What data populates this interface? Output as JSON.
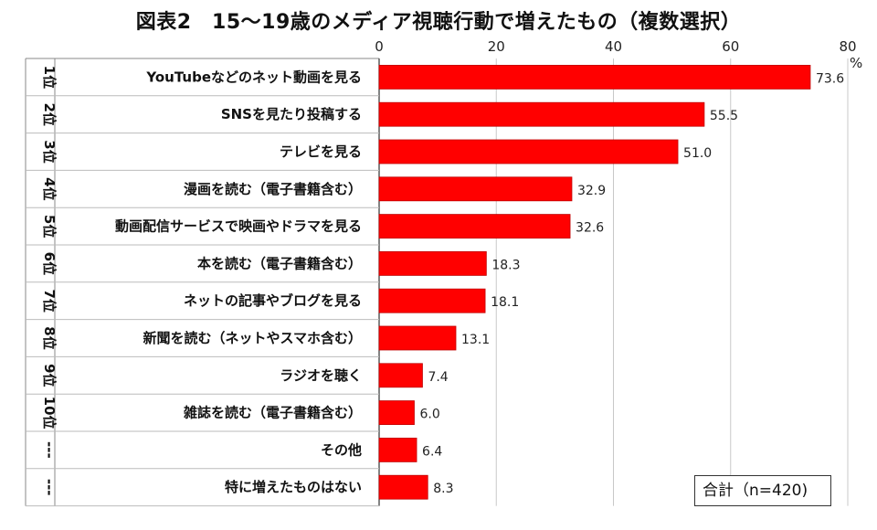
{
  "title": "図表2　15～19歳のメディア視聴行動で増えたもの（複数選択）",
  "total_label": "合計（n=420)",
  "unit": "%",
  "colors": {
    "bar": "#ff0000",
    "bar_stroke": "#c00000",
    "grid": "#c8c8c8"
  },
  "chart_data": {
    "type": "bar",
    "orientation": "horizontal",
    "title": "図表2　15～19歳のメディア視聴行動で増えたもの（複数選択）",
    "xlim": [
      0,
      80
    ],
    "xticks": [
      0,
      20,
      40,
      60,
      80
    ],
    "xlabel": "%",
    "ranks": [
      "1位",
      "2位",
      "3位",
      "4位",
      "5位",
      "6位",
      "7位",
      "8位",
      "9位",
      "10位",
      "---",
      "---"
    ],
    "categories": [
      "YouTubeなどのネット動画を見る",
      "SNSを見たり投稿する",
      "テレビを見る",
      "漫画を読む（電子書籍含む）",
      "動画配信サービスで映画やドラマを見る",
      "本を読む（電子書籍含む）",
      "ネットの記事やブログを見る",
      "新聞を読む（ネットやスマホ含む）",
      "ラジオを聴く",
      "雑誌を読む（電子書籍含む）",
      "その他",
      "特に増えたものはない"
    ],
    "values": [
      73.6,
      55.5,
      51.0,
      32.9,
      32.6,
      18.3,
      18.1,
      13.1,
      7.4,
      6.0,
      6.4,
      8.3
    ],
    "value_labels": [
      "73.6",
      "55.5",
      "51.0",
      "32.9",
      "32.6",
      "18.3",
      "18.1",
      "13.1",
      "7.4",
      "6.0",
      "6.4",
      "8.3"
    ]
  }
}
